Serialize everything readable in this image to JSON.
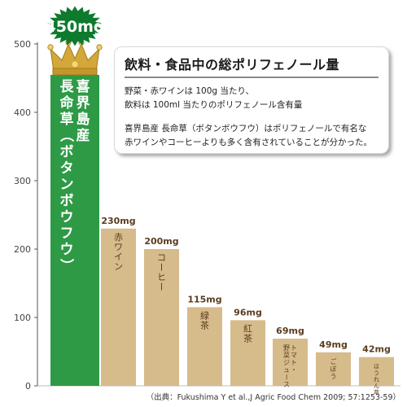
{
  "chart_data": {
    "type": "bar",
    "categories": [
      "喜界島産 長命草（ボタンボウフウ）",
      "赤ワイン",
      "コーヒー",
      "緑茶",
      "紅茶",
      "トマト・野菜ジュース",
      "ごぼう",
      "ほうれん草"
    ],
    "values": [
      450,
      230,
      200,
      115,
      96,
      69,
      49,
      42
    ],
    "value_labels": [
      "450mg",
      "230mg",
      "200mg",
      "115mg",
      "96mg",
      "69mg",
      "49mg",
      "42mg"
    ],
    "ylim": [
      0,
      500
    ],
    "yticks": [
      0,
      100,
      200,
      300,
      400,
      500
    ],
    "ytick_labels": [
      "0",
      "100",
      "200",
      "300",
      "400",
      "500"
    ],
    "highlight_category": "喜界島産 長命草（ボタンボウフウ）",
    "grid": false,
    "colors": {
      "highlight_bar": "#2e9a46",
      "bar": "#d6bb8b",
      "highlight_badge": "#0e7a2e",
      "crown": "#d4a838",
      "label_text": "#5a3d1e",
      "axis": "#555555"
    }
  },
  "note": {
    "title": "飲料・食品中の総ポリフェノール量",
    "lines": [
      "野菜・赤ワインは 100g 当たり、",
      "飲料は 100ml 当たりのポリフェノール含有量",
      "喜界島産 長命草（ボタンボウフウ）はポリフェノールで有名な",
      "赤ワインやコーヒーよりも多く含有されていることが分かった。"
    ]
  },
  "source": "（出典：Fukushima Y et al.,J Agric Food Chem 2009; 57:1253-59）",
  "icons": {
    "crown": "crown-icon",
    "badge": "starburst-badge-icon"
  }
}
